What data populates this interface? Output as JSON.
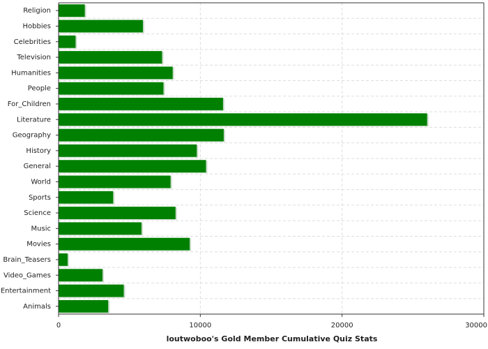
{
  "chart_data": {
    "type": "bar",
    "orientation": "horizontal",
    "title": "loutwoboo's Gold Member Cumulative Quiz Stats",
    "categories": [
      "Religion",
      "Hobbies",
      "Celebrities",
      "Television",
      "Humanities",
      "People",
      "For_Children",
      "Literature",
      "Geography",
      "History",
      "General",
      "World",
      "Sports",
      "Science",
      "Music",
      "Movies",
      "Brain_Teasers",
      "Video_Games",
      "Entertainment",
      "Animals"
    ],
    "values": [
      1850,
      5950,
      1200,
      7300,
      8050,
      7400,
      11600,
      26000,
      11650,
      9750,
      10400,
      7900,
      3850,
      8250,
      5850,
      9250,
      640,
      3100,
      4600,
      3500
    ],
    "color": "#008000",
    "xlim": [
      0,
      30000
    ],
    "xticks": [
      0,
      10000,
      20000,
      30000
    ],
    "grid": true
  }
}
